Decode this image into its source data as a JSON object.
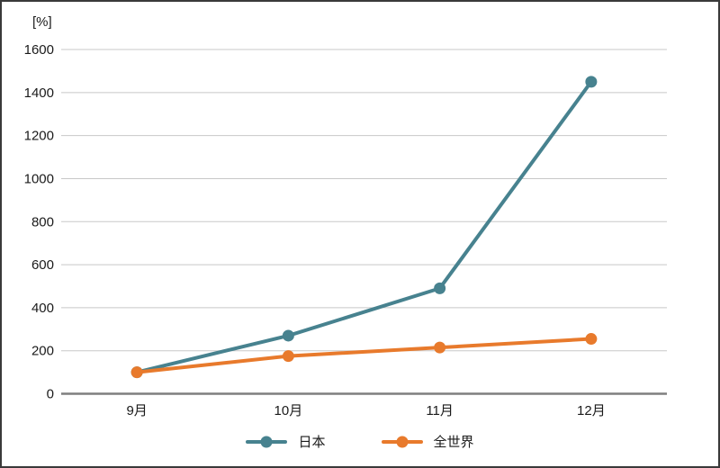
{
  "chart_data": {
    "type": "line",
    "categories": [
      "9月",
      "10月",
      "11月",
      "12月"
    ],
    "series": [
      {
        "name": "日本",
        "color": "#47828F",
        "values": [
          100,
          270,
          490,
          1450
        ]
      },
      {
        "name": "全世界",
        "color": "#E87A2C",
        "values": [
          100,
          175,
          215,
          255
        ]
      }
    ],
    "title": "",
    "xlabel": "",
    "ylabel": "[%]",
    "ylim": [
      0,
      1600
    ],
    "ytick_step": 200,
    "grid": true,
    "legend_position": "bottom",
    "colors": {
      "gridline": "#C8C8C8",
      "axis": "#7F7F7F",
      "text": "#1A1A1A",
      "border": "#3A3A3A",
      "background": "#FFFFFF"
    }
  }
}
